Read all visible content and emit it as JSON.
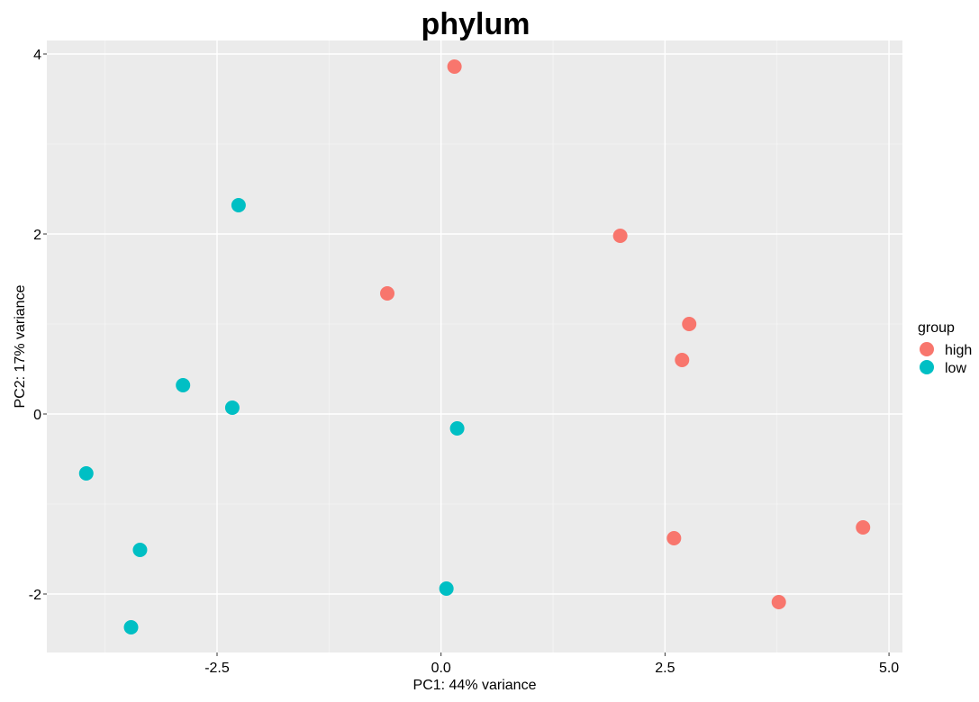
{
  "chart_data": {
    "type": "scatter",
    "title": "phylum",
    "xlabel": "PC1: 44% variance",
    "ylabel": "PC2: 17% variance",
    "xlim": [
      -4.4,
      5.15
    ],
    "ylim": [
      -2.65,
      4.15
    ],
    "x_ticks": [
      -2.5,
      0.0,
      2.5,
      5.0
    ],
    "x_tick_labels": [
      "-2.5",
      "0.0",
      "2.5",
      "5.0"
    ],
    "y_ticks": [
      -2,
      0,
      2,
      4
    ],
    "y_tick_labels": [
      "-2",
      "0",
      "2",
      "4"
    ],
    "grid": true,
    "legend": {
      "title": "group",
      "placement": "right"
    },
    "series": [
      {
        "name": "high",
        "color": "#F8766D",
        "points": [
          {
            "x": 0.15,
            "y": 3.86
          },
          {
            "x": 2.0,
            "y": 1.98
          },
          {
            "x": -0.6,
            "y": 1.34
          },
          {
            "x": 2.77,
            "y": 1.0
          },
          {
            "x": 2.69,
            "y": 0.6
          },
          {
            "x": 4.71,
            "y": -1.26
          },
          {
            "x": 2.6,
            "y": -1.38
          },
          {
            "x": 3.77,
            "y": -2.09
          }
        ]
      },
      {
        "name": "low",
        "color": "#00BFC4",
        "points": [
          {
            "x": -2.26,
            "y": 2.32
          },
          {
            "x": -2.88,
            "y": 0.32
          },
          {
            "x": -2.33,
            "y": 0.07
          },
          {
            "x": 0.18,
            "y": -0.16
          },
          {
            "x": -3.96,
            "y": -0.66
          },
          {
            "x": -3.36,
            "y": -1.51
          },
          {
            "x": 0.06,
            "y": -1.94
          },
          {
            "x": -3.46,
            "y": -2.37
          }
        ]
      }
    ]
  }
}
